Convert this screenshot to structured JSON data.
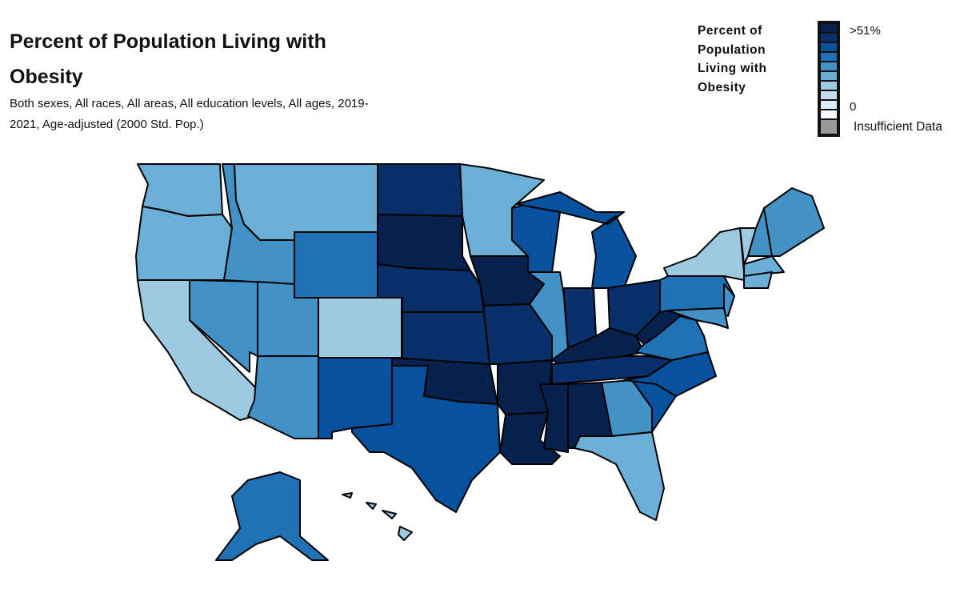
{
  "title": "Percent of Population Living with Obesity",
  "subtitle": "Both sexes, All races, All areas, All education levels, All ages, 2019-2021, Age-adjusted (2000 Std. Pop.)",
  "legend": {
    "title": "Percent of Population Living with Obesity",
    "max_label": ">51%",
    "min_label": "0",
    "insufficient_label": "Insufficient Data",
    "colors": [
      "#08214f",
      "#08306b",
      "#08519c",
      "#2171b5",
      "#4292c6",
      "#6baed6",
      "#9ecae1",
      "#c6dbef",
      "#deebf7",
      "#f7fbff"
    ],
    "insufficient_color": "#9a9a9a"
  },
  "states": [
    {
      "code": "WA",
      "name": "Washington",
      "level": 5
    },
    {
      "code": "OR",
      "name": "Oregon",
      "level": 5
    },
    {
      "code": "CA",
      "name": "California",
      "level": 6
    },
    {
      "code": "NV",
      "name": "Nevada",
      "level": 4
    },
    {
      "code": "ID",
      "name": "Idaho",
      "level": 4
    },
    {
      "code": "MT",
      "name": "Montana",
      "level": 5
    },
    {
      "code": "WY",
      "name": "Wyoming",
      "level": 3
    },
    {
      "code": "UT",
      "name": "Utah",
      "level": 4
    },
    {
      "code": "CO",
      "name": "Colorado",
      "level": 6
    },
    {
      "code": "AZ",
      "name": "Arizona",
      "level": 4
    },
    {
      "code": "NM",
      "name": "New Mexico",
      "level": 2
    },
    {
      "code": "ND",
      "name": "North Dakota",
      "level": 1
    },
    {
      "code": "SD",
      "name": "South Dakota",
      "level": 0
    },
    {
      "code": "NE",
      "name": "Nebraska",
      "level": 1
    },
    {
      "code": "KS",
      "name": "Kansas",
      "level": 1
    },
    {
      "code": "OK",
      "name": "Oklahoma",
      "level": 0
    },
    {
      "code": "TX",
      "name": "Texas",
      "level": 2
    },
    {
      "code": "MN",
      "name": "Minnesota",
      "level": 5
    },
    {
      "code": "IA",
      "name": "Iowa",
      "level": 0
    },
    {
      "code": "MO",
      "name": "Missouri",
      "level": 1
    },
    {
      "code": "AR",
      "name": "Arkansas",
      "level": 0
    },
    {
      "code": "LA",
      "name": "Louisiana",
      "level": 0
    },
    {
      "code": "WI",
      "name": "Wisconsin",
      "level": 2
    },
    {
      "code": "IL",
      "name": "Illinois",
      "level": 4
    },
    {
      "code": "MI",
      "name": "Michigan",
      "level": 2
    },
    {
      "code": "IN",
      "name": "Indiana",
      "level": 1
    },
    {
      "code": "OH",
      "name": "Ohio",
      "level": 1
    },
    {
      "code": "KY",
      "name": "Kentucky",
      "level": 0
    },
    {
      "code": "TN",
      "name": "Tennessee",
      "level": 1
    },
    {
      "code": "MS",
      "name": "Mississippi",
      "level": 0
    },
    {
      "code": "AL",
      "name": "Alabama",
      "level": 0
    },
    {
      "code": "GA",
      "name": "Georgia",
      "level": 4
    },
    {
      "code": "FL",
      "name": "Florida",
      "level": 5
    },
    {
      "code": "SC",
      "name": "South Carolina",
      "level": 2
    },
    {
      "code": "NC",
      "name": "North Carolina",
      "level": 2
    },
    {
      "code": "VA",
      "name": "Virginia",
      "level": 3
    },
    {
      "code": "WV",
      "name": "West Virginia",
      "level": 0
    },
    {
      "code": "PA",
      "name": "Pennsylvania",
      "level": 3
    },
    {
      "code": "NY",
      "name": "New York",
      "level": 6
    },
    {
      "code": "NJ",
      "name": "New Jersey",
      "level": 4
    },
    {
      "code": "MD",
      "name": "Maryland",
      "level": 4
    },
    {
      "code": "VT",
      "name": "Vermont",
      "level": 6
    },
    {
      "code": "NH",
      "name": "New Hampshire",
      "level": 4
    },
    {
      "code": "ME",
      "name": "Maine",
      "level": 4
    },
    {
      "code": "MA",
      "name": "Massachusetts",
      "level": 5
    },
    {
      "code": "CT",
      "name": "Connecticut",
      "level": 5
    },
    {
      "code": "AK",
      "name": "Alaska",
      "level": 3
    },
    {
      "code": "HI",
      "name": "Hawaii",
      "level": 6
    }
  ]
}
